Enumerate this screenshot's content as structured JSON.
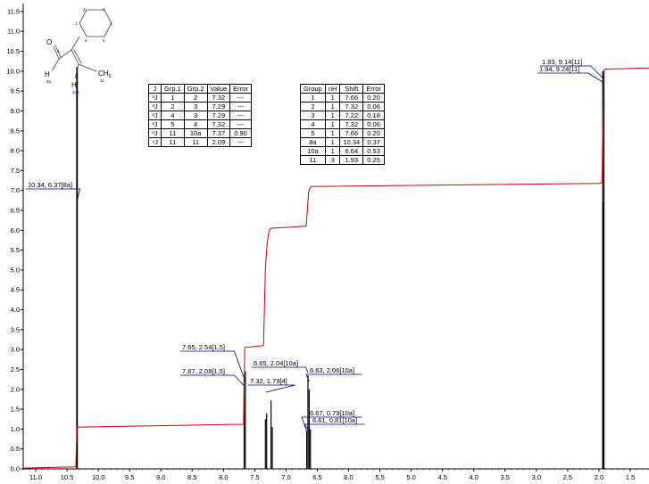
{
  "chart_data": {
    "type": "line",
    "title": "",
    "xlabel": "",
    "ylabel": "",
    "xlim": [
      11.2,
      1.2
    ],
    "ylim": [
      0,
      11.7
    ],
    "x_reversed": true,
    "x_ticks": [
      "11.0",
      "10.5",
      "10.0",
      "9.5",
      "9.0",
      "8.5",
      "8.0",
      "7.5",
      "7.0",
      "6.5",
      "6.0",
      "5.5",
      "5.0",
      "4.5",
      "4.0",
      "3.5",
      "3.0",
      "2.5",
      "2.0",
      "1.5"
    ],
    "y_ticks": [
      "0.0",
      "0.5",
      "1.0",
      "1.5",
      "2.0",
      "2.5",
      "3.0",
      "3.5",
      "4.0",
      "4.5",
      "5.0",
      "5.5",
      "6.0",
      "6.5",
      "7.0",
      "7.5",
      "8.0",
      "8.5",
      "9.0",
      "9.5",
      "10.0",
      "10.5",
      "11.0",
      "11.5"
    ],
    "peaks": [
      {
        "x": 10.345,
        "y": 10.1
      },
      {
        "x": 10.335,
        "y": 10.1
      },
      {
        "x": 7.67,
        "y": 2.35
      },
      {
        "x": 7.65,
        "y": 2.45
      },
      {
        "x": 7.33,
        "y": 1.25
      },
      {
        "x": 7.31,
        "y": 1.4
      },
      {
        "x": 7.24,
        "y": 1.72
      },
      {
        "x": 7.22,
        "y": 1.05
      },
      {
        "x": 6.67,
        "y": 0.95
      },
      {
        "x": 6.65,
        "y": 2.35
      },
      {
        "x": 6.63,
        "y": 2.0
      },
      {
        "x": 6.61,
        "y": 1.0
      },
      {
        "x": 1.94,
        "y": 10.0
      },
      {
        "x": 1.93,
        "y": 6.7
      },
      {
        "x": 1.92,
        "y": 10.0
      }
    ],
    "integral_curve": [
      [
        11.2,
        0.02
      ],
      [
        10.36,
        0.05
      ],
      [
        10.34,
        1.05
      ],
      [
        7.69,
        1.12
      ],
      [
        7.68,
        1.15
      ],
      [
        7.66,
        3.05
      ],
      [
        7.36,
        3.1
      ],
      [
        7.33,
        5.05
      ],
      [
        7.3,
        5.7
      ],
      [
        7.27,
        6.0
      ],
      [
        7.24,
        6.05
      ],
      [
        6.68,
        6.1
      ],
      [
        6.66,
        6.5
      ],
      [
        6.64,
        6.95
      ],
      [
        6.62,
        7.05
      ],
      [
        6.59,
        7.1
      ],
      [
        2.0,
        7.18
      ],
      [
        1.95,
        7.2
      ],
      [
        1.93,
        10.0
      ],
      [
        1.9,
        10.05
      ],
      [
        1.2,
        10.08
      ]
    ],
    "peak_labels": [
      {
        "text": "10.34, 6.37[8a]",
        "x": 10.345
      },
      {
        "text": "7.65, 2.54[1,5]",
        "x": 7.65
      },
      {
        "text": "7.67, 2.08[1,5]",
        "x": 7.67
      },
      {
        "text": "7.32, 1.79[4]",
        "x": 7.32
      },
      {
        "text": "6.65, 2.04[10a]",
        "x": 6.65
      },
      {
        "text": "6.63, 2.06[10a]",
        "x": 6.63
      },
      {
        "text": "6.67, 0.79[10a]",
        "x": 6.67
      },
      {
        "text": "6.61, 0.81[10a]",
        "x": 6.61
      },
      {
        "text": "1.93, 9.14[11]",
        "x": 1.93
      },
      {
        "text": "1.94, 9.24[11]",
        "x": 1.94
      }
    ],
    "colors": {
      "spectrum": "#000000",
      "integral": "#d00000",
      "label_line": "#00007f"
    }
  },
  "j_table": {
    "headers": [
      "J",
      "Grp.1",
      "Grp.2",
      "Value",
      "Error"
    ],
    "rows": [
      [
        "³J",
        "1",
        "2",
        "7.32",
        "---"
      ],
      [
        "³J",
        "2",
        "3",
        "7.29",
        "---"
      ],
      [
        "³J",
        "4",
        "3",
        "7.29",
        "---"
      ],
      [
        "³J",
        "5",
        "4",
        "7.32",
        "---"
      ],
      [
        "³J",
        "11",
        "10a",
        "7.37",
        "0.90"
      ],
      [
        "⁴J",
        "11",
        "11",
        "2.09",
        "---"
      ]
    ]
  },
  "group_table": {
    "headers": [
      "Group",
      "nH",
      "Shift",
      "Error"
    ],
    "rows": [
      [
        "1",
        "1",
        "7.66",
        "0.20"
      ],
      [
        "2",
        "1",
        "7.32",
        "0.06"
      ],
      [
        "3",
        "1",
        "7.22",
        "0.18"
      ],
      [
        "4",
        "1",
        "7.32",
        "0.06"
      ],
      [
        "5",
        "1",
        "7.66",
        "0.20"
      ],
      [
        "8a",
        "1",
        "10.34",
        "0.37"
      ],
      [
        "10a",
        "1",
        "6.64",
        "0.53"
      ],
      [
        "11",
        "3",
        "1.93",
        "0.25"
      ]
    ]
  },
  "molecule": {
    "O": "O",
    "H_left": "H",
    "H_bottom": "H",
    "CH3": "CH",
    "CH3_sub": "3",
    "n8a": "8a",
    "n10a": "10a",
    "n11": "11",
    "n9": "9",
    "ring": [
      "1",
      "2",
      "3",
      "4",
      "5",
      "6"
    ]
  }
}
